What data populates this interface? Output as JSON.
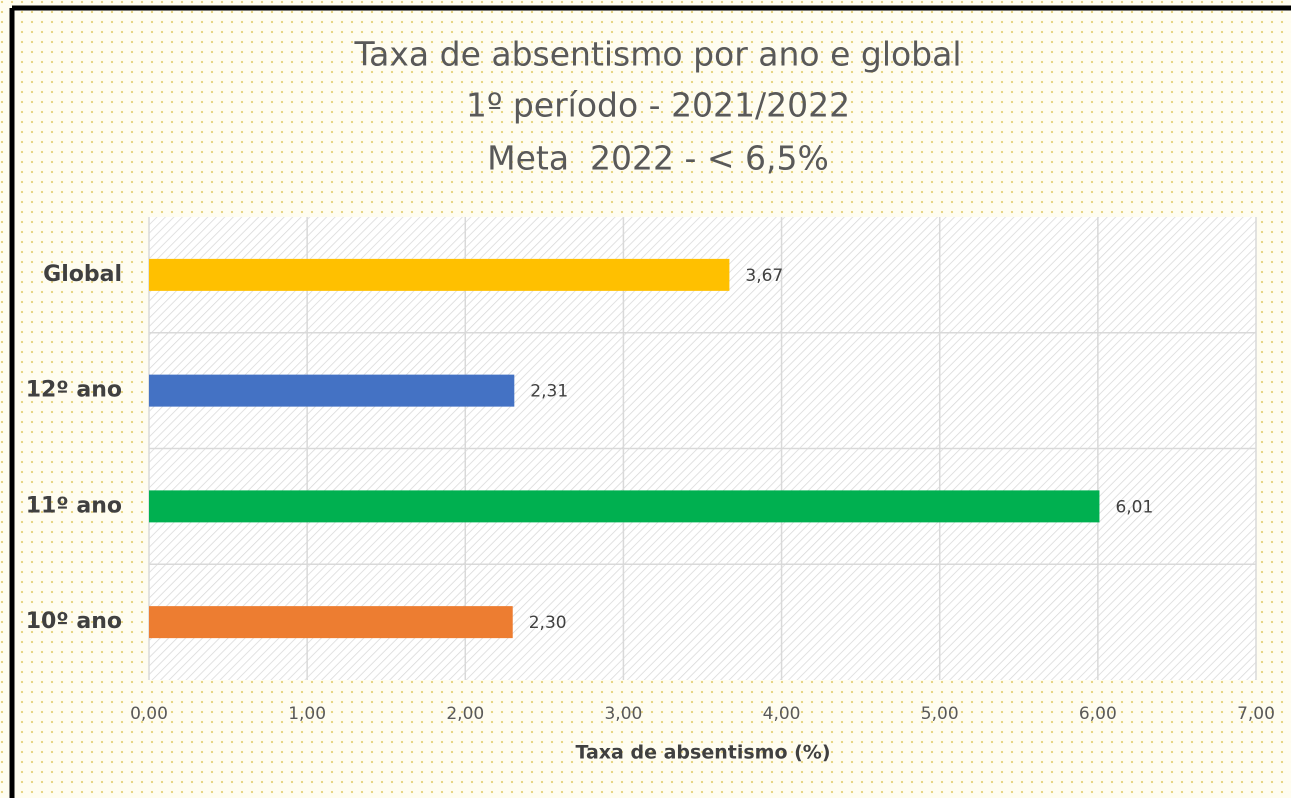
{
  "chart_data": {
    "type": "hbar",
    "title": [
      "Taxa de absentismo por ano e global",
      "1º período - 2021/2022",
      "Meta  2022 - < 6,5%"
    ],
    "categories": [
      "Global",
      "12º ano",
      "11º ano",
      "10º ano"
    ],
    "values": [
      3.67,
      2.31,
      6.01,
      2.3
    ],
    "value_labels": [
      "3,67",
      "2,31",
      "6,01",
      "2,30"
    ],
    "colors": [
      "#ffc000",
      "#4472c4",
      "#00b050",
      "#ed7d31"
    ],
    "xlabel": "Taxa de absentismo (%)",
    "xlim": [
      0,
      7
    ],
    "xticks": [
      {
        "value": 0,
        "label": "0,00"
      },
      {
        "value": 1,
        "label": "1,00"
      },
      {
        "value": 2,
        "label": "2,00"
      },
      {
        "value": 3,
        "label": "3,00"
      },
      {
        "value": 4,
        "label": "4,00"
      },
      {
        "value": 5,
        "label": "5,00"
      },
      {
        "value": 6,
        "label": "6,00"
      },
      {
        "value": 7,
        "label": "7,00"
      }
    ],
    "grid": true
  }
}
